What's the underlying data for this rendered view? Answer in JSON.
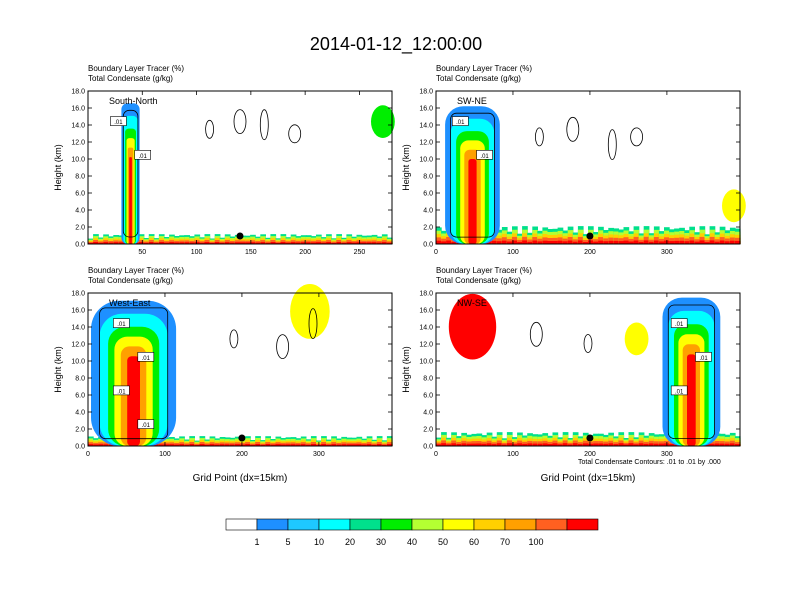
{
  "title": "2014-01-12_12:00:00",
  "footnote": "Total Condensate Contours: .01 to .01 by .000",
  "shared_xlabel": "Grid Point (dx=15km)",
  "colorbar": {
    "labels": [
      "1",
      "5",
      "10",
      "20",
      "30",
      "40",
      "50",
      "60",
      "70",
      "100"
    ],
    "colors": [
      "#ffffff",
      "#1e90ff",
      "#1ec8ff",
      "#00ffff",
      "#00e08c",
      "#00ee00",
      "#b4ff32",
      "#ffff00",
      "#ffd000",
      "#ffa000",
      "#ff6020",
      "#ff0000"
    ]
  },
  "chart_data": [
    {
      "type": "heatmap",
      "panel": "South-North",
      "line1": "Boundary Layer Tracer   (%)",
      "line2": "Total Condensate   (g/kg)",
      "ylabel": "Height (km)",
      "xlabel": "",
      "xlim": [
        0,
        280
      ],
      "ylim": [
        0,
        18
      ],
      "xticks": [
        "50",
        "100",
        "150",
        "200",
        "250"
      ],
      "xtick_values": [
        50,
        100,
        150,
        200,
        250
      ],
      "yticks": [
        "0.0",
        "2.0",
        "4.0",
        "6.0",
        "8.0",
        "10.0",
        "12.0",
        "14.0",
        "16.0",
        "18.0"
      ],
      "marker_x": 140,
      "contour_labels": [
        ".01",
        ".01"
      ]
    },
    {
      "type": "heatmap",
      "panel": "SW-NE",
      "line1": "Boundary Layer Tracer   (%)",
      "line2": "Total Condensate   (g/kg)",
      "ylabel": "Height (km)",
      "xlabel": "",
      "xlim": [
        0,
        395
      ],
      "ylim": [
        0,
        18
      ],
      "xticks": [
        "0",
        "100",
        "200",
        "300"
      ],
      "xtick_values": [
        0,
        100,
        200,
        300
      ],
      "yticks": [
        "0.0",
        "2.0",
        "4.0",
        "6.0",
        "8.0",
        "10.0",
        "12.0",
        "14.0",
        "16.0",
        "18.0"
      ],
      "marker_x": 200,
      "contour_labels": [
        ".01",
        ".01"
      ]
    },
    {
      "type": "heatmap",
      "panel": "West-East",
      "line1": "Boundary Layer Tracer   (%)",
      "line2": "Total Condensate   (g/kg)",
      "ylabel": "Height (km)",
      "xlabel": "Grid Point (dx=15km)",
      "xlim": [
        0,
        395
      ],
      "ylim": [
        0,
        18
      ],
      "xticks": [
        "0",
        "100",
        "200",
        "300"
      ],
      "xtick_values": [
        0,
        100,
        200,
        300
      ],
      "yticks": [
        "0.0",
        "2.0",
        "4.0",
        "6.0",
        "8.0",
        "10.0",
        "12.0",
        "14.0",
        "16.0",
        "18.0"
      ],
      "marker_x": 200,
      "contour_labels": [
        ".01",
        ".01",
        ".01",
        ".01"
      ]
    },
    {
      "type": "heatmap",
      "panel": "NW-SE",
      "line1": "Boundary Layer Tracer   (%)",
      "line2": "Total Condensate   (g/kg)",
      "ylabel": "Height (km)",
      "xlabel": "Grid Point (dx=15km)",
      "xlim": [
        0,
        395
      ],
      "ylim": [
        0,
        18
      ],
      "xticks": [
        "0",
        "100",
        "200",
        "300"
      ],
      "xtick_values": [
        0,
        100,
        200,
        300
      ],
      "yticks": [
        "0.0",
        "2.0",
        "4.0",
        "6.0",
        "8.0",
        "10.0",
        "12.0",
        "14.0",
        "16.0",
        "18.0"
      ],
      "marker_x": 200,
      "contour_labels": [
        ".01",
        ".01",
        ".01"
      ]
    }
  ]
}
